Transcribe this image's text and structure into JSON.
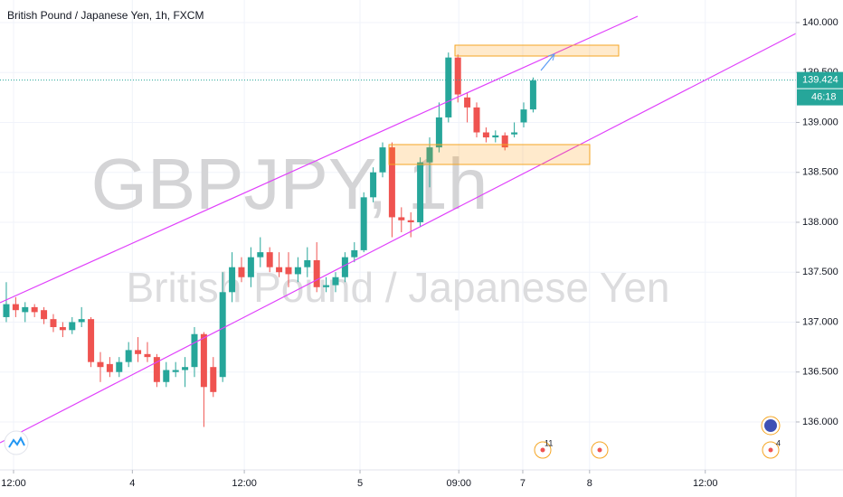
{
  "chart_data": {
    "type": "candlestick",
    "title": "British Pound / Japanese Yen, 1h, FXCM",
    "watermark": [
      "GBPJPY, 1h",
      "British Pound / Japanese Yen"
    ],
    "up_color": "#26a69a",
    "down_color": "#ef5350",
    "grid": true,
    "open": [
      137.05,
      137.18,
      137.1,
      137.15,
      137.12,
      137.03,
      136.95,
      136.92,
      137.0,
      137.03,
      136.6,
      136.58,
      136.5,
      136.6,
      136.72,
      136.68,
      136.65,
      136.4,
      136.5,
      136.52,
      136.55,
      136.88,
      136.55,
      136.45,
      137.3,
      137.55,
      137.45,
      137.65,
      137.7,
      137.55,
      137.55,
      137.48,
      137.55,
      137.62,
      137.35,
      137.37,
      137.45,
      137.65,
      137.72,
      138.25,
      138.5,
      138.75,
      138.05,
      138.02,
      138.0,
      138.6,
      138.75,
      139.05,
      139.65,
      139.25,
      139.15,
      138.9,
      138.85,
      138.87,
      138.88,
      139.0,
      139.13
    ],
    "high": [
      137.4,
      137.25,
      137.2,
      137.18,
      137.15,
      137.08,
      137.0,
      137.05,
      137.15,
      137.05,
      136.7,
      136.65,
      136.65,
      136.8,
      136.85,
      136.8,
      136.68,
      136.6,
      136.6,
      136.65,
      136.95,
      136.9,
      136.65,
      137.5,
      137.7,
      137.65,
      137.75,
      137.85,
      137.75,
      137.7,
      137.7,
      137.65,
      137.75,
      137.8,
      137.45,
      137.5,
      137.7,
      137.8,
      138.3,
      138.55,
      138.8,
      138.8,
      138.15,
      138.1,
      138.65,
      138.85,
      139.2,
      139.7,
      139.68,
      139.3,
      139.2,
      138.95,
      138.92,
      138.9,
      139.0,
      139.2,
      139.45
    ],
    "low": [
      137.0,
      137.05,
      137.0,
      137.05,
      136.98,
      136.9,
      136.85,
      136.88,
      136.95,
      136.55,
      136.4,
      136.45,
      136.45,
      136.55,
      136.6,
      136.6,
      136.35,
      136.35,
      136.45,
      136.35,
      136.45,
      135.95,
      136.25,
      136.4,
      137.2,
      137.4,
      137.35,
      137.55,
      137.5,
      137.45,
      137.35,
      137.4,
      137.45,
      137.3,
      137.3,
      137.3,
      137.4,
      137.6,
      137.7,
      138.2,
      138.45,
      137.85,
      137.9,
      137.85,
      137.95,
      138.35,
      138.7,
      139.0,
      139.2,
      139.0,
      138.85,
      138.8,
      138.8,
      138.72,
      138.85,
      138.95,
      139.1
    ],
    "close": [
      137.18,
      137.12,
      137.15,
      137.1,
      137.03,
      136.95,
      136.92,
      137.0,
      137.03,
      136.6,
      136.55,
      136.5,
      136.6,
      136.72,
      136.68,
      136.65,
      136.4,
      136.52,
      136.52,
      136.55,
      136.88,
      136.35,
      136.3,
      137.3,
      137.55,
      137.45,
      137.65,
      137.7,
      137.55,
      137.5,
      137.48,
      137.55,
      137.62,
      137.35,
      137.37,
      137.45,
      137.65,
      137.72,
      138.25,
      138.5,
      138.75,
      138.05,
      138.02,
      138.0,
      138.6,
      138.75,
      139.05,
      139.65,
      139.28,
      139.15,
      138.9,
      138.85,
      138.87,
      138.75,
      138.9,
      139.13,
      139.42
    ],
    "last_price": 139.424,
    "last_price_color": "#26a69a",
    "countdown": "46:18",
    "ylim": [
      135.52,
      140.226
    ],
    "yticks": [
      {
        "value": 140,
        "label": "140.000"
      },
      {
        "value": 139.5,
        "label": "139.500"
      },
      {
        "value": 139,
        "label": "139.000"
      },
      {
        "value": 138.5,
        "label": "138.500"
      },
      {
        "value": 138,
        "label": "138.000"
      },
      {
        "value": 137.5,
        "label": "137.500"
      },
      {
        "value": 137,
        "label": "137.000"
      },
      {
        "value": 136.5,
        "label": "136.500"
      },
      {
        "value": 136,
        "label": "136.000"
      }
    ],
    "xlim": [
      -0.67,
      83.94
    ],
    "xticks": [
      {
        "value": 0.77,
        "label": "12:00"
      },
      {
        "value": 13.4,
        "label": "4"
      },
      {
        "value": 25.3,
        "label": "12:00"
      },
      {
        "value": 37.6,
        "label": "5"
      },
      {
        "value": 48.1,
        "label": "09:00"
      },
      {
        "value": 54.9,
        "label": "7"
      },
      {
        "value": 62,
        "label": "8"
      },
      {
        "value": 74.3,
        "label": "12:00"
      }
    ],
    "annotations": [
      "11",
      "4"
    ]
  }
}
